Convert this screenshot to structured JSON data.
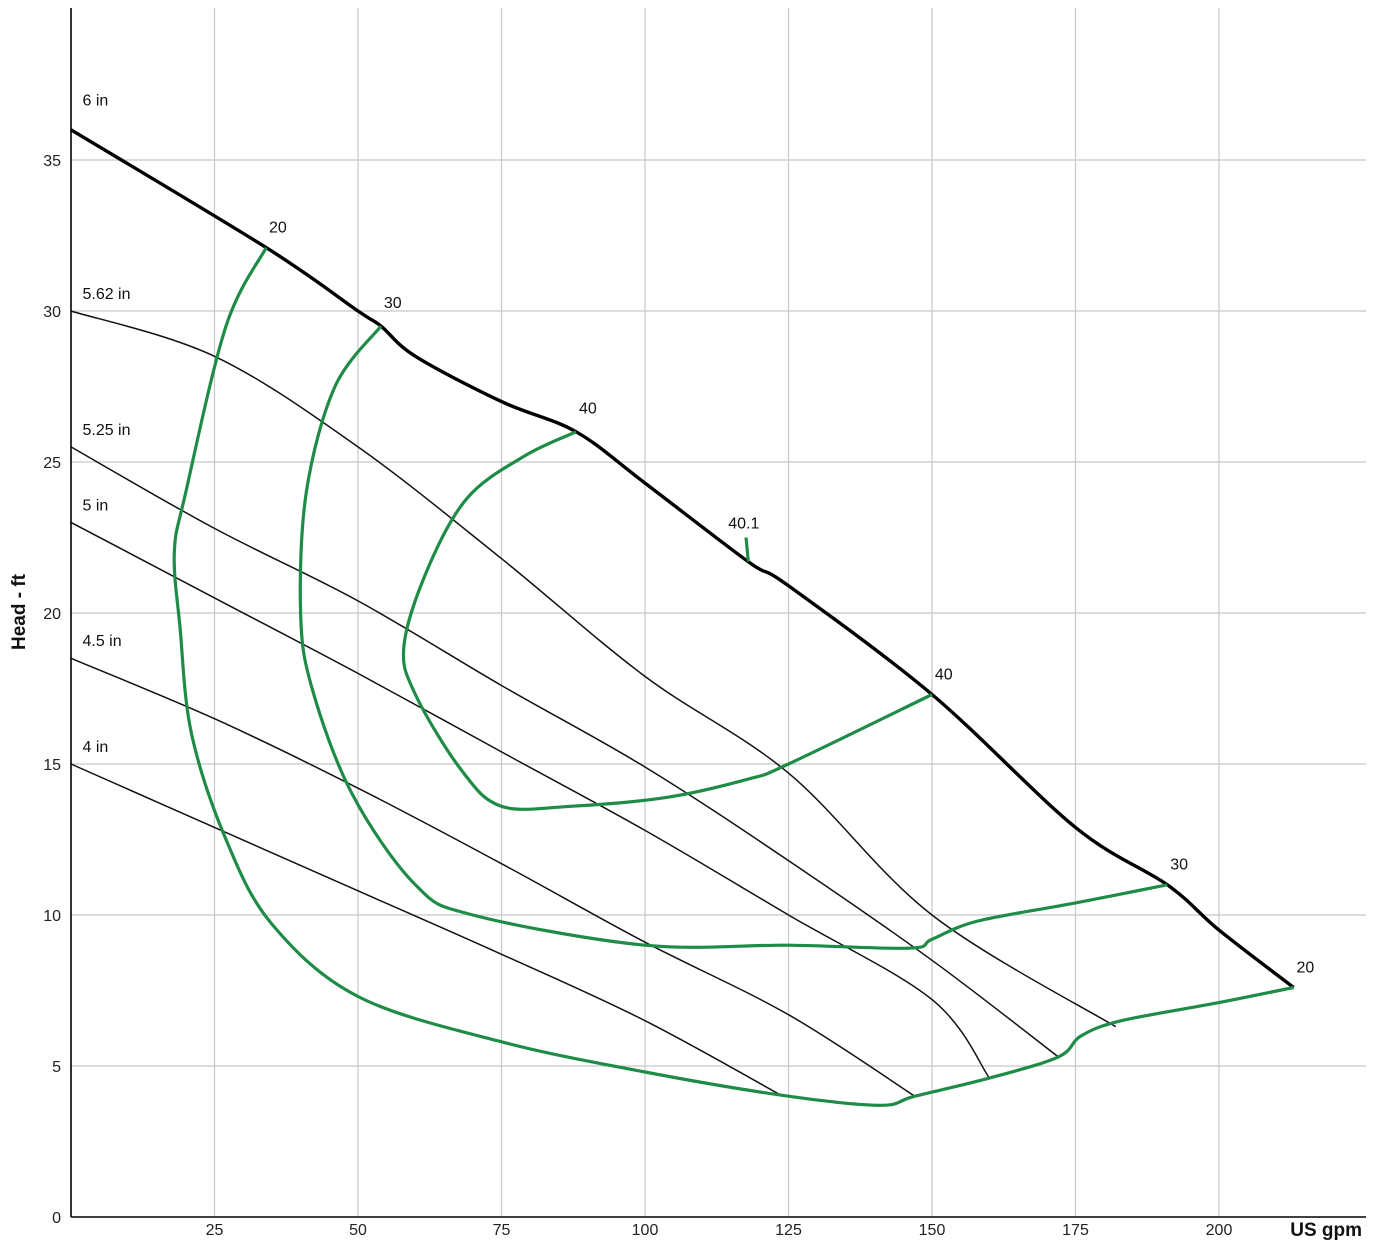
{
  "chart_data": {
    "type": "line",
    "xlabel": "US gpm",
    "ylabel": "Head - ft",
    "xlim": [
      0,
      225
    ],
    "ylim": [
      0,
      40
    ],
    "x_ticks": [
      25,
      50,
      75,
      100,
      125,
      150,
      175,
      200
    ],
    "y_ticks": [
      0,
      5,
      10,
      15,
      20,
      25,
      30,
      35
    ],
    "grid": true,
    "impeller_curves": [
      {
        "name": "6 in",
        "max": true,
        "points": [
          [
            0,
            36
          ],
          [
            34,
            32.1
          ],
          [
            50,
            30
          ],
          [
            54,
            29.5
          ],
          [
            60,
            28.5
          ],
          [
            75,
            27
          ],
          [
            88,
            26
          ],
          [
            100,
            24.3
          ],
          [
            118,
            21.7
          ],
          [
            125,
            20.9
          ],
          [
            150,
            17.3
          ],
          [
            175,
            12.9
          ],
          [
            191,
            11
          ],
          [
            200,
            9.5
          ],
          [
            213,
            7.6
          ]
        ]
      },
      {
        "name": "5.62 in",
        "points": [
          [
            0,
            30
          ],
          [
            25,
            28.5
          ],
          [
            50,
            25.5
          ],
          [
            75,
            21.8
          ],
          [
            100,
            17.9
          ],
          [
            125,
            14.7
          ],
          [
            150,
            10
          ],
          [
            182,
            6.3
          ]
        ]
      },
      {
        "name": "5.25 in",
        "points": [
          [
            0,
            25.5
          ],
          [
            25,
            22.8
          ],
          [
            50,
            20.4
          ],
          [
            75,
            17.6
          ],
          [
            100,
            14.9
          ],
          [
            125,
            11.8
          ],
          [
            150,
            8.5
          ],
          [
            172,
            5.3
          ]
        ]
      },
      {
        "name": "5 in",
        "points": [
          [
            0,
            23
          ],
          [
            25,
            20.5
          ],
          [
            50,
            18
          ],
          [
            75,
            15.4
          ],
          [
            100,
            12.8
          ],
          [
            125,
            10
          ],
          [
            150,
            7.2
          ],
          [
            160,
            4.6
          ]
        ]
      },
      {
        "name": "4.5 in",
        "points": [
          [
            0,
            18.5
          ],
          [
            25,
            16.5
          ],
          [
            50,
            14.2
          ],
          [
            75,
            11.7
          ],
          [
            100,
            9.1
          ],
          [
            125,
            6.7
          ],
          [
            147,
            4
          ]
        ]
      },
      {
        "name": "4 in",
        "points": [
          [
            0,
            15
          ],
          [
            25,
            12.9
          ],
          [
            50,
            10.8
          ],
          [
            75,
            8.7
          ],
          [
            100,
            6.5
          ],
          [
            124,
            4
          ]
        ]
      }
    ],
    "efficiency_curves": [
      {
        "label": "20",
        "points": [
          [
            34,
            32.1
          ],
          [
            27,
            29.5
          ],
          [
            20,
            24
          ],
          [
            18,
            22
          ],
          [
            19,
            19.5
          ],
          [
            21,
            16
          ],
          [
            27,
            12.5
          ],
          [
            35,
            9.7
          ],
          [
            50,
            7.3
          ],
          [
            75,
            5.8
          ],
          [
            100,
            4.8
          ],
          [
            125,
            4
          ],
          [
            141,
            3.7
          ],
          [
            147,
            4
          ],
          [
            160,
            4.6
          ],
          [
            172,
            5.3
          ],
          [
            176,
            6
          ],
          [
            183,
            6.5
          ],
          [
            200,
            7.1
          ],
          [
            213,
            7.6
          ]
        ]
      },
      {
        "label": "30",
        "points": [
          [
            54,
            29.5
          ],
          [
            46,
            27.5
          ],
          [
            41,
            24
          ],
          [
            40,
            20
          ],
          [
            42,
            17.5
          ],
          [
            49,
            14
          ],
          [
            60,
            11
          ],
          [
            70,
            10
          ],
          [
            100,
            9
          ],
          [
            125,
            9
          ],
          [
            146,
            8.9
          ],
          [
            150,
            9.2
          ],
          [
            158,
            9.8
          ],
          [
            175,
            10.4
          ],
          [
            191,
            11
          ]
        ]
      },
      {
        "label": "40",
        "points": [
          [
            88,
            26
          ],
          [
            79,
            25.2
          ],
          [
            69,
            23.8
          ],
          [
            62,
            21.4
          ],
          [
            58,
            18.9
          ],
          [
            60,
            17.3
          ],
          [
            68,
            14.8
          ],
          [
            75,
            13.6
          ],
          [
            87,
            13.6
          ],
          [
            104,
            13.9
          ],
          [
            118,
            14.5
          ],
          [
            125,
            15
          ],
          [
            150,
            17.3
          ]
        ]
      }
    ],
    "annotations": [
      {
        "text": "6 in",
        "x": 2,
        "y": 36.8
      },
      {
        "text": "5.62 in",
        "x": 2,
        "y": 30.4
      },
      {
        "text": "5.25 in",
        "x": 2,
        "y": 25.9
      },
      {
        "text": "5 in",
        "x": 2,
        "y": 23.4
      },
      {
        "text": "4.5 in",
        "x": 2,
        "y": 18.9
      },
      {
        "text": "4 in",
        "x": 2,
        "y": 15.4
      },
      {
        "text": "20",
        "x": 34.5,
        "y": 32.6
      },
      {
        "text": "30",
        "x": 54.5,
        "y": 30.1
      },
      {
        "text": "40",
        "x": 88.5,
        "y": 26.6
      },
      {
        "text": "40.1",
        "x": 114.5,
        "y": 22.8
      },
      {
        "text": "40",
        "x": 150.5,
        "y": 17.8
      },
      {
        "text": "30",
        "x": 191.5,
        "y": 11.5
      },
      {
        "text": "20",
        "x": 213.5,
        "y": 8.1
      }
    ],
    "bep_marker": {
      "points": [
        [
          118,
          21.7
        ],
        [
          117.6,
          22.5
        ]
      ]
    }
  }
}
